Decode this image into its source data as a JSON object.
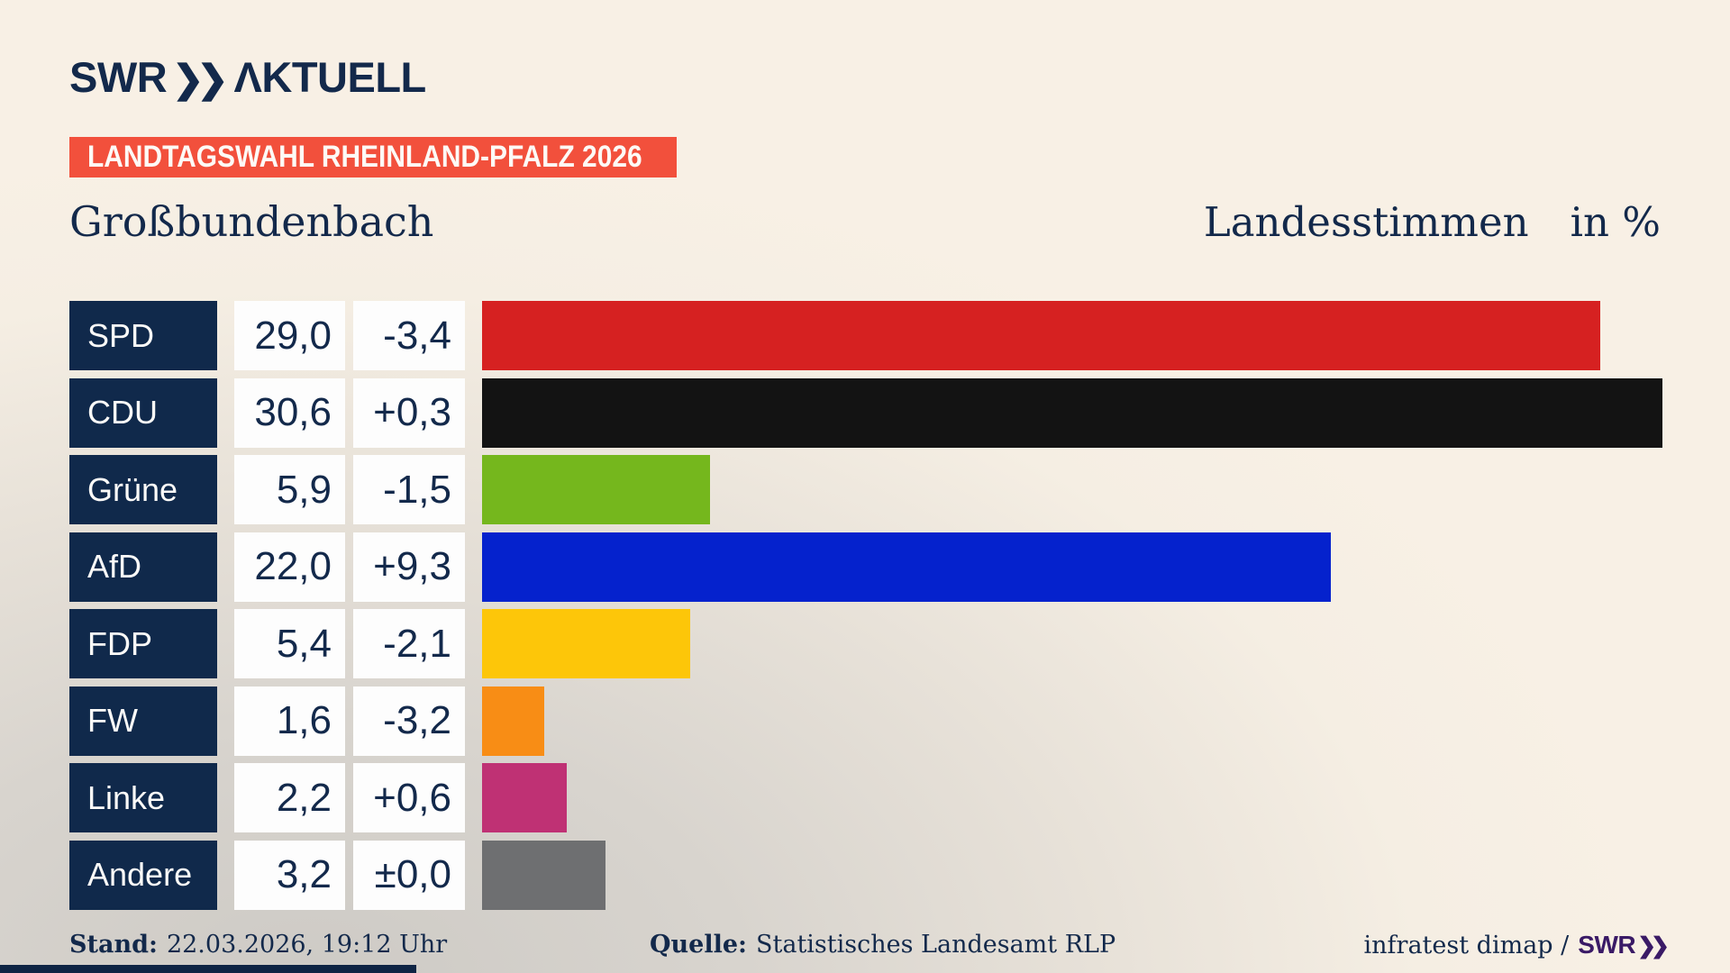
{
  "header": {
    "logo": {
      "swr": "SWR",
      "chevrons": "❯❯",
      "brand": "ΛKTUELL"
    },
    "banner": "LANDTAGSWAHL RHEINLAND-PFALZ 2026",
    "title": "Großbundenbach",
    "subtitle_right": "Landesstimmen",
    "unit": "in %"
  },
  "colors": {
    "banner_red": "#f2503c",
    "navy": "#13294b",
    "credit_purple": "#3a1a66",
    "background_cream": "#f8f0e5",
    "background_gray": "#cdcac5"
  },
  "chart_data": {
    "type": "bar",
    "orientation": "horizontal",
    "title": "Landesstimmen in %",
    "region": "Großbundenbach",
    "unit": "%",
    "axis_max": 30.6,
    "max_value": 30.6,
    "grid": false,
    "legend": "none",
    "categories": [
      "SPD",
      "CDU",
      "Grüne",
      "AfD",
      "FDP",
      "FW",
      "Linke",
      "Andere"
    ],
    "series": [
      {
        "party": "SPD",
        "value": 29.0,
        "change": -3.4,
        "value_label": "29,0",
        "change_label": "-3,4",
        "color": "#d62121"
      },
      {
        "party": "CDU",
        "value": 30.6,
        "change": 0.3,
        "value_label": "30,6",
        "change_label": "+0,3",
        "color": "#131313"
      },
      {
        "party": "Grüne",
        "value": 5.9,
        "change": -1.5,
        "value_label": "5,9",
        "change_label": "-1,5",
        "color": "#75b71d"
      },
      {
        "party": "AfD",
        "value": 22.0,
        "change": 9.3,
        "value_label": "22,0",
        "change_label": "+9,3",
        "color": "#0522cd"
      },
      {
        "party": "FDP",
        "value": 5.4,
        "change": -2.1,
        "value_label": "5,4",
        "change_label": "-2,1",
        "color": "#fdc609"
      },
      {
        "party": "FW",
        "value": 1.6,
        "change": -3.2,
        "value_label": "1,6",
        "change_label": "-3,2",
        "color": "#f88d15"
      },
      {
        "party": "Linke",
        "value": 2.2,
        "change": 0.6,
        "value_label": "2,2",
        "change_label": "+0,6",
        "color": "#bf3174"
      },
      {
        "party": "Andere",
        "value": 3.2,
        "change": 0.0,
        "value_label": "3,2",
        "change_label": "±0,0",
        "color": "#6e6f71"
      }
    ]
  },
  "footer": {
    "stand_label": "Stand:",
    "stand_value": "22.03.2026, 19:12 Uhr",
    "quelle_label": "Quelle:",
    "quelle_value": "Statistisches Landesamt RLP",
    "credit_text": "infratest dimap /",
    "credit_logo": {
      "swr": "SWR",
      "chevrons": "❯❯"
    }
  }
}
